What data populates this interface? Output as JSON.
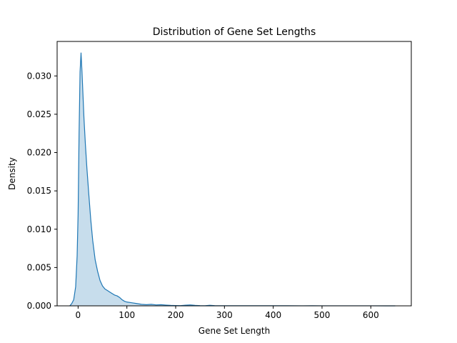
{
  "chart_data": {
    "type": "area",
    "title": "Distribution of Gene Set Lengths",
    "xlabel": "Gene Set Length",
    "ylabel": "Density",
    "xlim": [
      -43,
      683
    ],
    "ylim": [
      0,
      0.0345
    ],
    "xticks": [
      0,
      100,
      200,
      300,
      400,
      500,
      600
    ],
    "xtick_labels": [
      "0",
      "100",
      "200",
      "300",
      "400",
      "500",
      "600"
    ],
    "yticks": [
      0.0,
      0.005,
      0.01,
      0.015,
      0.02,
      0.025,
      0.03
    ],
    "ytick_labels": [
      "0.000",
      "0.005",
      "0.010",
      "0.015",
      "0.020",
      "0.025",
      "0.030"
    ],
    "grid": false,
    "legend": "none",
    "series": [
      {
        "x": [
          -17,
          -13,
          -9,
          -5,
          -2,
          0,
          2,
          4,
          6,
          8,
          10,
          12,
          15,
          18,
          22,
          26,
          30,
          35,
          40,
          45,
          50,
          55,
          60,
          65,
          70,
          75,
          80,
          85,
          90,
          95,
          100,
          110,
          120,
          130,
          140,
          150,
          160,
          170,
          180,
          190,
          200,
          210,
          220,
          230,
          240,
          250,
          260,
          270,
          280,
          300,
          320,
          350,
          380,
          400,
          430,
          460,
          480,
          500,
          530,
          560,
          600,
          630,
          650
        ],
        "y": [
          0.0,
          0.0003,
          0.0008,
          0.0025,
          0.0065,
          0.012,
          0.0225,
          0.0305,
          0.033,
          0.0305,
          0.0275,
          0.0245,
          0.021,
          0.018,
          0.0145,
          0.0112,
          0.0085,
          0.006,
          0.0045,
          0.0033,
          0.0026,
          0.0022,
          0.002,
          0.0018,
          0.0016,
          0.0014,
          0.0013,
          0.0011,
          0.0008,
          0.0006,
          0.0005,
          0.0004,
          0.0003,
          0.0002,
          0.00015,
          0.0002,
          0.00012,
          0.00015,
          0.0001,
          6e-05,
          4e-05,
          3e-05,
          8e-05,
          0.00012,
          6e-05,
          3e-05,
          2e-05,
          7e-05,
          3e-05,
          2e-05,
          1e-05,
          2e-05,
          1e-05,
          2e-05,
          1e-05,
          5e-06,
          1e-05,
          5e-06,
          5e-06,
          5e-06,
          5e-06,
          3e-06,
          0.0
        ],
        "color": "#1f77b4",
        "fill_color": "#1f77b4",
        "fill_opacity": 0.25
      }
    ]
  }
}
